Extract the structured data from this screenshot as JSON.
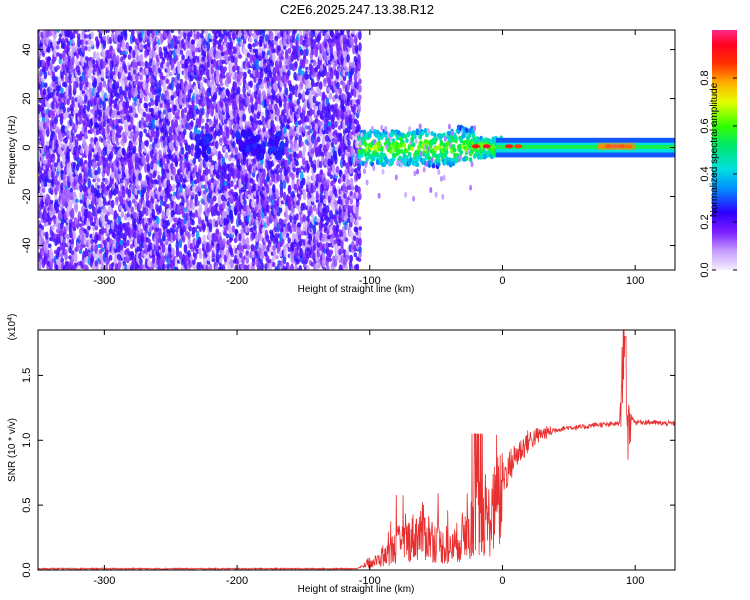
{
  "title": "C2E6.2025.247.13.38.R12",
  "chart_data": [
    {
      "type": "heatmap",
      "xlabel": "Height of straight line (km)",
      "ylabel": "Frequency (Hz)",
      "xlim": [
        -350,
        130
      ],
      "ylim": [
        -50,
        48
      ],
      "x_ticks": [
        -300,
        -200,
        -100,
        0,
        100
      ],
      "y_ticks": [
        -40,
        -20,
        0,
        20,
        40
      ],
      "colorbar": {
        "label": "Normalized spectral amplitude",
        "range": [
          0,
          1
        ],
        "ticks": [
          "0.0",
          "0.2",
          "0.4",
          "0.6",
          "0.8"
        ],
        "colormap": [
          "#f4eeff",
          "#9b4dff",
          "#3b00ff",
          "#00b7ff",
          "#00e38c",
          "#33ff00",
          "#ffe000",
          "#ff7000",
          "#ff0000",
          "#ff2a8a"
        ]
      },
      "regions": [
        {
          "x": [
            -350,
            -108
          ],
          "f": [
            -50,
            48
          ],
          "level": "0.1-0.3",
          "desc": "noise"
        },
        {
          "x": [
            -108,
            0
          ],
          "f": [
            -8,
            8
          ],
          "level": "0.2-0.6"
        },
        {
          "x": [
            0,
            130
          ],
          "f": [
            -2,
            2
          ],
          "level": "0.5"
        },
        {
          "x": [
            75,
            100
          ],
          "f": [
            -1,
            3
          ],
          "level": "0.9"
        }
      ]
    },
    {
      "type": "line",
      "xlabel": "Height of straight line (km)",
      "ylabel": "SNR (10 * v/v)",
      "y_multiplier": "(x10^4)",
      "xlim": [
        -350,
        130
      ],
      "ylim": [
        0,
        1.85
      ],
      "x_ticks": [
        -300,
        -200,
        -100,
        0,
        100
      ],
      "y_ticks": [
        "0.0",
        "0.5",
        "1.0",
        "1.5"
      ],
      "color": "#e83030",
      "series": [
        {
          "x": [
            -350,
            -110,
            -100,
            -90,
            -80,
            -70,
            -60,
            -50,
            -40,
            -30,
            -20,
            -10,
            0,
            10,
            20,
            30,
            40,
            50,
            60,
            70,
            80,
            88,
            92,
            94,
            96,
            100,
            110,
            120,
            130
          ],
          "y": [
            0.01,
            0.01,
            0.06,
            0.1,
            0.22,
            0.28,
            0.35,
            0.25,
            0.18,
            0.3,
            0.5,
            0.45,
            0.7,
            0.88,
            1.0,
            1.05,
            1.08,
            1.1,
            1.1,
            1.12,
            1.12,
            1.13,
            1.8,
            0.9,
            1.2,
            1.14,
            1.14,
            1.13,
            1.13
          ]
        }
      ]
    }
  ]
}
